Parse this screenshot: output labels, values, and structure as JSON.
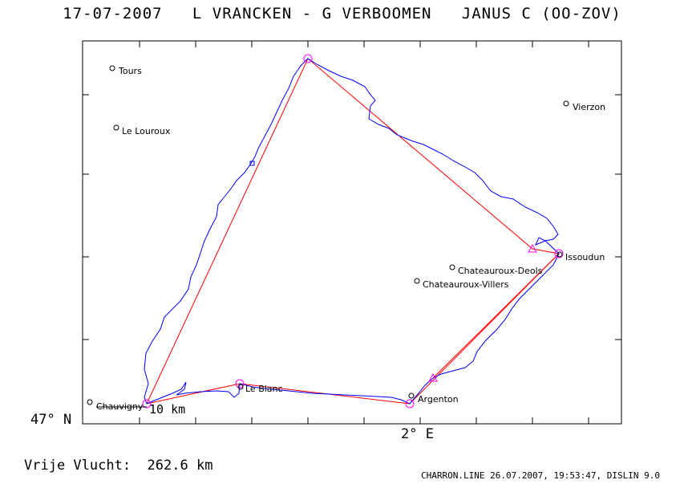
{
  "header": {
    "date": "17-07-2007",
    "pilots": "L VRANCKEN - G VERBOOMEN",
    "glider": "JANUS C (OO-ZOV)"
  },
  "axes": {
    "lat_label": "47° N",
    "lon_label": "2° E"
  },
  "scale": {
    "label": "10 km"
  },
  "flight": {
    "distance_label": "Vrije Vlucht:",
    "distance_value": "262.6 km"
  },
  "footer": {
    "file": "CHARRON.LINE 26.07.2007, 19:53:47, DISLIN 9.0"
  },
  "colors": {
    "track": "#0000ff",
    "task": "#ff0000",
    "turnpoint": "#ff00ff",
    "frame": "#000000"
  },
  "places": [
    "Tours",
    "Le Louroux",
    "Vierzon",
    "Issoudun",
    "Chateauroux-Deols",
    "Chateauroux-Villers",
    "Argenton",
    "Le Blanc",
    "Chauvigny"
  ]
}
